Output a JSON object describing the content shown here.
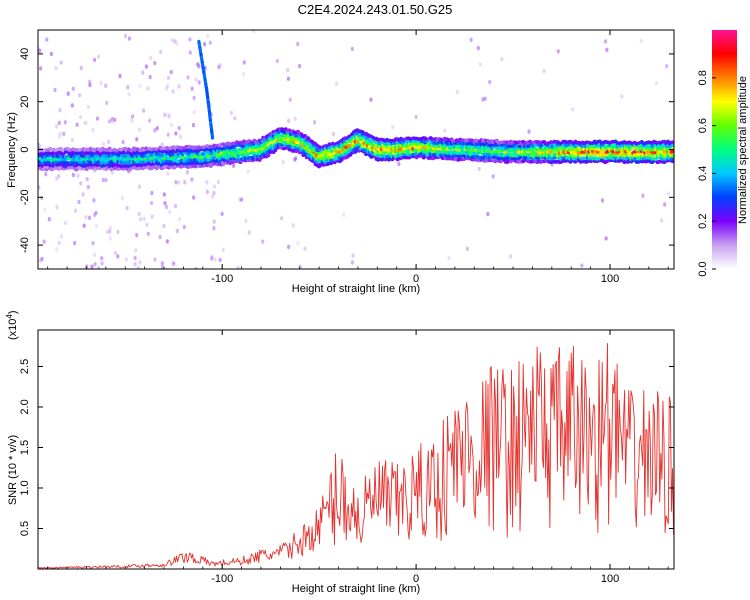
{
  "title": "C2E4.2024.243.01.50.G25",
  "chart_data": [
    {
      "type": "heatmap",
      "xlabel": "Height of straight line (km)",
      "ylabel": "Frequency (Hz)",
      "xlim": [
        -195,
        133
      ],
      "ylim": [
        -50,
        50
      ],
      "x_ticks": [
        -100,
        0,
        100
      ],
      "x_tick_labels": [
        "-100",
        "0",
        "100"
      ],
      "y_ticks": [
        -40,
        -20,
        0,
        20,
        40
      ],
      "y_tick_labels": [
        "-40",
        "-20",
        "0",
        "20",
        "40"
      ],
      "colorbar": {
        "label": "Normalized spectral amplitude",
        "range": [
          0,
          1
        ],
        "ticks": [
          0.0,
          0.2,
          0.4,
          0.6,
          0.8
        ],
        "tick_labels": [
          "0.0",
          "0.2",
          "0.4",
          "0.6",
          "0.8"
        ],
        "colors": [
          "#ffffff",
          "#c8a0f0",
          "#7a00ff",
          "#0040ff",
          "#00c8ff",
          "#00ff80",
          "#60ff00",
          "#ffff00",
          "#ff8000",
          "#ff0000",
          "#ff1493"
        ]
      },
      "ridge": [
        [
          -195,
          -4
        ],
        [
          -150,
          -4
        ],
        [
          -110,
          -3
        ],
        [
          -100,
          -2
        ],
        [
          -80,
          0
        ],
        [
          -70,
          5
        ],
        [
          -60,
          3
        ],
        [
          -50,
          -3
        ],
        [
          -40,
          -1
        ],
        [
          -30,
          4
        ],
        [
          -20,
          0
        ],
        [
          -10,
          0
        ],
        [
          0,
          1
        ],
        [
          20,
          0
        ],
        [
          50,
          -1
        ],
        [
          80,
          -1
        ],
        [
          110,
          -1
        ],
        [
          133,
          -1
        ]
      ],
      "ridge_amplitude": [
        [
          -195,
          0.45
        ],
        [
          -150,
          0.5
        ],
        [
          -110,
          0.55
        ],
        [
          -100,
          0.6
        ],
        [
          -80,
          0.7
        ],
        [
          -60,
          0.75
        ],
        [
          -40,
          0.8
        ],
        [
          -20,
          0.85
        ],
        [
          0,
          0.8
        ],
        [
          20,
          0.65
        ],
        [
          40,
          0.6
        ],
        [
          60,
          0.7
        ],
        [
          80,
          0.85
        ],
        [
          100,
          0.9
        ],
        [
          120,
          0.88
        ],
        [
          133,
          0.85
        ]
      ],
      "streak": [
        [
          -112,
          45
        ],
        [
          -108,
          25
        ],
        [
          -105,
          5
        ]
      ]
    },
    {
      "type": "line",
      "xlabel": "Height of straight line (km)",
      "ylabel": "SNR (10 * v/v)",
      "y_scale_label": "(x10",
      "y_scale_exponent": "4",
      "y_scale_suffix": ")",
      "xlim": [
        -195,
        133
      ],
      "ylim": [
        0,
        2.95
      ],
      "x_ticks": [
        -100,
        0,
        100
      ],
      "x_tick_labels": [
        "-100",
        "0",
        "100"
      ],
      "y_ticks": [
        0.5,
        1.0,
        1.5,
        2.0,
        2.5
      ],
      "y_tick_labels": [
        "0.5",
        "1.0",
        "1.5",
        "2.0",
        "2.5"
      ],
      "line_color": "#e8302c",
      "envelope": [
        [
          -195,
          0.02
        ],
        [
          -150,
          0.05
        ],
        [
          -130,
          0.08
        ],
        [
          -118,
          0.25
        ],
        [
          -105,
          0.1
        ],
        [
          -90,
          0.15
        ],
        [
          -80,
          0.25
        ],
        [
          -70,
          0.3
        ],
        [
          -60,
          0.5
        ],
        [
          -50,
          0.8
        ],
        [
          -40,
          1.6
        ],
        [
          -30,
          1.0
        ],
        [
          -20,
          1.4
        ],
        [
          -10,
          1.3
        ],
        [
          0,
          1.5
        ],
        [
          10,
          1.7
        ],
        [
          20,
          2.2
        ],
        [
          30,
          2.3
        ],
        [
          40,
          2.6
        ],
        [
          50,
          2.5
        ],
        [
          60,
          2.9
        ],
        [
          70,
          2.7
        ],
        [
          80,
          2.8
        ],
        [
          90,
          2.6
        ],
        [
          100,
          2.9
        ],
        [
          110,
          2.2
        ],
        [
          120,
          2.3
        ],
        [
          133,
          2.1
        ]
      ]
    }
  ]
}
